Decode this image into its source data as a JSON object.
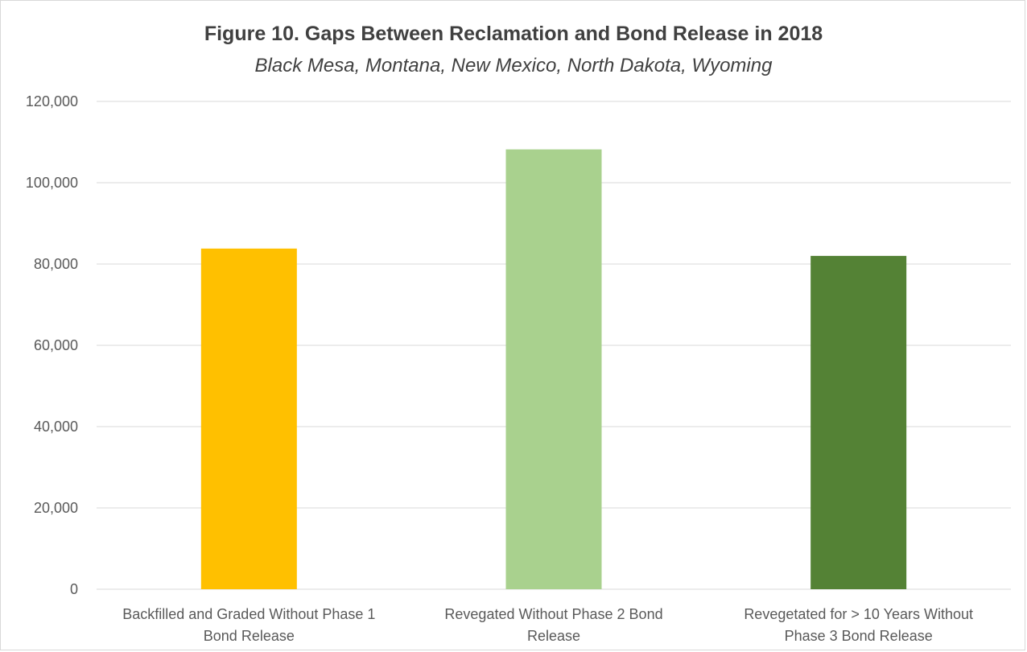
{
  "chart_data": {
    "type": "bar",
    "title": "Figure 10. Gaps Between Reclamation and Bond Release in 2018",
    "subtitle": "Black Mesa, Montana, New Mexico, North Dakota, Wyoming",
    "xlabel": "",
    "ylabel": "",
    "ylim": [
      0,
      120000
    ],
    "yticks": [
      0,
      20000,
      40000,
      60000,
      80000,
      100000,
      120000
    ],
    "ytick_labels": [
      "0",
      "20,000",
      "40,000",
      "60,000",
      "80,000",
      "100,000",
      "120,000"
    ],
    "grid": true,
    "legend": "none",
    "categories": [
      [
        "Backfilled and Graded Without Phase 1",
        "Bond Release"
      ],
      [
        "Revegated Without Phase 2 Bond",
        "Release"
      ],
      [
        "Revegetated for > 10 Years Without",
        "Phase 3 Bond Release"
      ]
    ],
    "values": [
      83800,
      108200,
      82000
    ],
    "colors": [
      "#FFC000",
      "#A9D18E",
      "#548235"
    ]
  }
}
